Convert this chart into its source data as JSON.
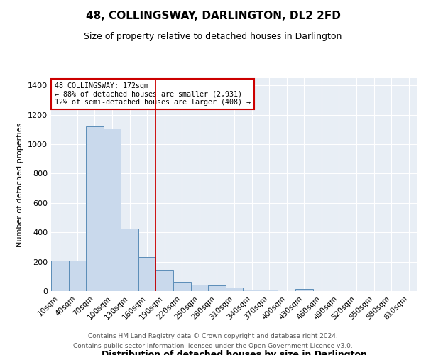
{
  "title": "48, COLLINGSWAY, DARLINGTON, DL2 2FD",
  "subtitle": "Size of property relative to detached houses in Darlington",
  "xlabel": "Distribution of detached houses by size in Darlington",
  "ylabel": "Number of detached properties",
  "footnote1": "Contains HM Land Registry data © Crown copyright and database right 2024.",
  "footnote2": "Contains public sector information licensed under the Open Government Licence v3.0.",
  "annotation_line1": "48 COLLINGSWAY: 172sqm",
  "annotation_line2": "← 88% of detached houses are smaller (2,931)",
  "annotation_line3": "12% of semi-detached houses are larger (408) →",
  "bar_color": "#c9d9ec",
  "bar_edge_color": "#5b8db8",
  "vline_color": "#cc0000",
  "vline_x": 5.5,
  "categories": [
    "10sqm",
    "40sqm",
    "70sqm",
    "100sqm",
    "130sqm",
    "160sqm",
    "190sqm",
    "220sqm",
    "250sqm",
    "280sqm",
    "310sqm",
    "340sqm",
    "370sqm",
    "400sqm",
    "430sqm",
    "460sqm",
    "490sqm",
    "520sqm",
    "550sqm",
    "580sqm",
    "610sqm"
  ],
  "values": [
    210,
    210,
    1120,
    1105,
    425,
    230,
    145,
    63,
    45,
    38,
    22,
    12,
    12,
    0,
    15,
    0,
    0,
    0,
    0,
    0,
    0
  ],
  "ylim": [
    0,
    1450
  ],
  "yticks": [
    0,
    200,
    400,
    600,
    800,
    1000,
    1200,
    1400
  ],
  "background_color": "#e8eef5",
  "fig_background": "#ffffff",
  "title_fontsize": 11,
  "subtitle_fontsize": 9,
  "ylabel_fontsize": 8,
  "xlabel_fontsize": 9,
  "tick_fontsize": 7.5
}
